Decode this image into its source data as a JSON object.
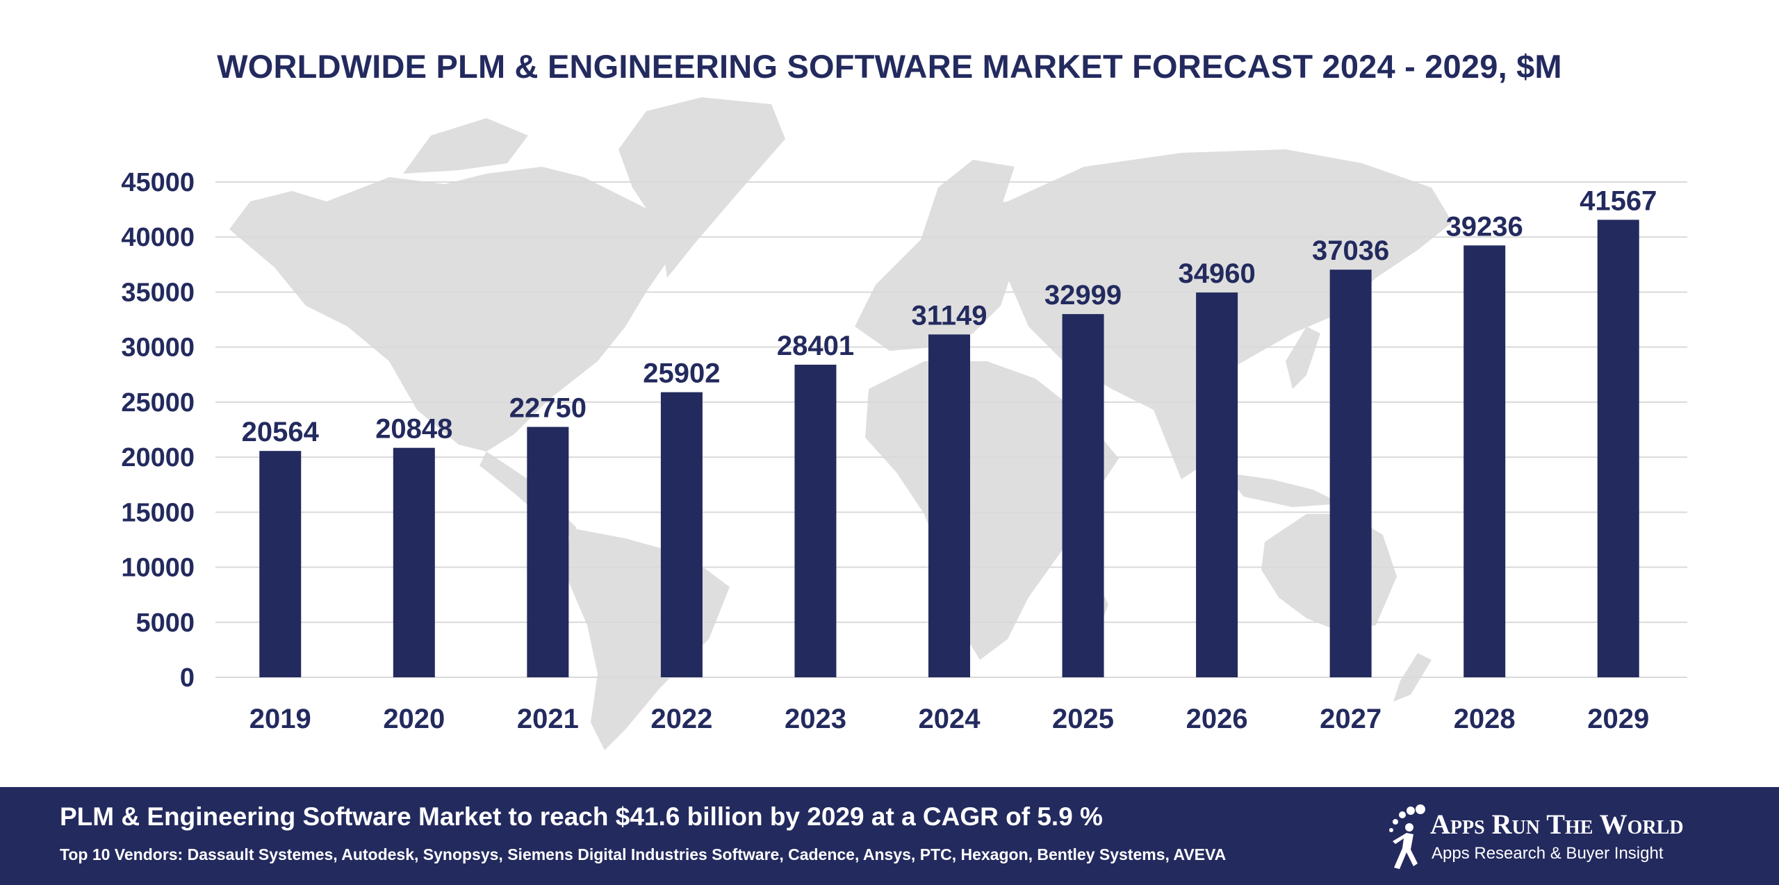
{
  "colors": {
    "bar": "#232a5e",
    "grid": "#d9d9d9",
    "map": "#dedede",
    "footer": "#232a5e"
  },
  "chart_data": {
    "type": "bar",
    "title": "WORLDWIDE PLM & ENGINEERING SOFTWARE MARKET FORECAST 2024 - 2029, $M",
    "categories": [
      "2019",
      "2020",
      "2021",
      "2022",
      "2023",
      "2024",
      "2025",
      "2026",
      "2027",
      "2028",
      "2029"
    ],
    "values": [
      20564,
      20848,
      22750,
      25902,
      28401,
      31149,
      32999,
      34960,
      37036,
      39236,
      41567
    ],
    "yticks": [
      0,
      5000,
      10000,
      15000,
      20000,
      25000,
      30000,
      35000,
      40000,
      45000
    ],
    "ylim": [
      0,
      45000
    ],
    "xlabel": "",
    "ylabel": "",
    "grid": true
  },
  "footer": {
    "headline": "PLM & Engineering Software Market to reach $41.6 billion by 2029 at a CAGR of 5.9 %",
    "vendors": "Top 10 Vendors: Dassault Systemes, Autodesk, Synopsys, Siemens Digital Industries Software, Cadence, Ansys, PTC, Hexagon, Bentley Systems, AVEVA"
  },
  "logo": {
    "name": "Apps Run The World",
    "tagline": "Apps Research & Buyer Insight"
  }
}
